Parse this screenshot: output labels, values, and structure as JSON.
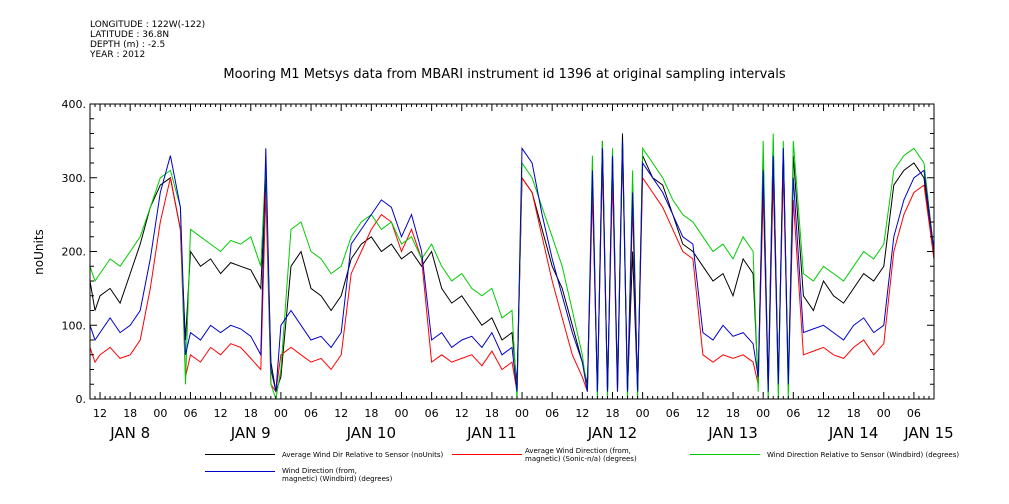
{
  "meta": {
    "longitude": "LONGITUDE : 122W(-122)",
    "latitude": "LATITUDE : 36.8N",
    "depth": "DEPTH (m) : -2.5",
    "year": "YEAR : 2012"
  },
  "chart_data": {
    "type": "line",
    "title": "Mooring M1 Metsys data from MBARI instrument id 1396 at original sampling intervals",
    "ylabel": "noUnits",
    "xlabel": "",
    "ylim": [
      0,
      400
    ],
    "xlim_hours": [
      -14,
      154
    ],
    "y_ticks": [
      0,
      100,
      200,
      300,
      400
    ],
    "y_tick_labels": [
      "0.",
      "100.",
      "200.",
      "300.",
      "400."
    ],
    "hour_ticks": [
      {
        "h": -12,
        "label": "12"
      },
      {
        "h": -6,
        "label": "18"
      },
      {
        "h": 0,
        "label": "00"
      },
      {
        "h": 6,
        "label": "06"
      },
      {
        "h": 12,
        "label": "12"
      },
      {
        "h": 18,
        "label": "18"
      },
      {
        "h": 24,
        "label": "00"
      },
      {
        "h": 30,
        "label": "06"
      },
      {
        "h": 36,
        "label": "12"
      },
      {
        "h": 42,
        "label": "18"
      },
      {
        "h": 48,
        "label": "00"
      },
      {
        "h": 54,
        "label": "06"
      },
      {
        "h": 60,
        "label": "12"
      },
      {
        "h": 66,
        "label": "18"
      },
      {
        "h": 72,
        "label": "00"
      },
      {
        "h": 78,
        "label": "06"
      },
      {
        "h": 84,
        "label": "12"
      },
      {
        "h": 90,
        "label": "18"
      },
      {
        "h": 96,
        "label": "00"
      },
      {
        "h": 102,
        "label": "06"
      },
      {
        "h": 108,
        "label": "12"
      },
      {
        "h": 114,
        "label": "18"
      },
      {
        "h": 120,
        "label": "00"
      },
      {
        "h": 126,
        "label": "06"
      },
      {
        "h": 132,
        "label": "12"
      },
      {
        "h": 138,
        "label": "18"
      },
      {
        "h": 144,
        "label": "00"
      },
      {
        "h": 150,
        "label": "06"
      },
      {
        "h": 156,
        "label": "12"
      },
      {
        "h": 162,
        "label": "18"
      },
      {
        "h": 168,
        "label": "00"
      }
    ],
    "day_labels": [
      {
        "h": -6,
        "label": "JAN  8"
      },
      {
        "h": 18,
        "label": "JAN  9"
      },
      {
        "h": 42,
        "label": "JAN 10"
      },
      {
        "h": 66,
        "label": "JAN 11"
      },
      {
        "h": 90,
        "label": "JAN 12"
      },
      {
        "h": 114,
        "label": "JAN 13"
      },
      {
        "h": 138,
        "label": "JAN 14"
      },
      {
        "h": 153,
        "label": "JAN 15"
      }
    ],
    "series": [
      {
        "name": "Average Wind Dir Relative to Sensor (noUnits)",
        "color": "#000000",
        "x": [
          -14,
          -13,
          -12,
          -10,
          -8,
          -6,
          -4,
          -2,
          0,
          2,
          4,
          5,
          6,
          8,
          10,
          12,
          14,
          16,
          18,
          20,
          21,
          22,
          23,
          24,
          26,
          28,
          30,
          32,
          34,
          36,
          38,
          40,
          42,
          44,
          46,
          48,
          50,
          52,
          54,
          56,
          58,
          60,
          62,
          64,
          66,
          68,
          70,
          71,
          72,
          74,
          76,
          78,
          80,
          82,
          84,
          85,
          86,
          87,
          88,
          89,
          90,
          91,
          92,
          93,
          94,
          95,
          96,
          98,
          100,
          102,
          104,
          106,
          108,
          110,
          112,
          114,
          116,
          118,
          119,
          120,
          121,
          122,
          123,
          124,
          125,
          126,
          128,
          130,
          132,
          134,
          136,
          138,
          140,
          142,
          144,
          146,
          148,
          150,
          152,
          154
        ],
        "y": [
          160,
          120,
          140,
          150,
          130,
          170,
          210,
          260,
          290,
          300,
          230,
          80,
          200,
          180,
          190,
          170,
          185,
          180,
          175,
          150,
          300,
          50,
          10,
          30,
          180,
          200,
          150,
          140,
          120,
          140,
          190,
          210,
          220,
          200,
          210,
          190,
          200,
          180,
          200,
          150,
          130,
          140,
          120,
          100,
          110,
          80,
          90,
          20,
          300,
          280,
          230,
          180,
          150,
          100,
          50,
          20,
          300,
          10,
          350,
          10,
          330,
          20,
          360,
          10,
          200,
          10,
          330,
          300,
          290,
          250,
          210,
          200,
          180,
          160,
          170,
          140,
          190,
          170,
          20,
          330,
          20,
          350,
          20,
          340,
          20,
          330,
          140,
          120,
          160,
          140,
          130,
          150,
          170,
          160,
          180,
          290,
          310,
          320,
          300,
          190
        ]
      },
      {
        "name": "Average Wind Direction (from,\n magnetic) (Sonic-n/a) (degrees)",
        "color": "#ff0000",
        "x": [
          -14,
          -13,
          -12,
          -10,
          -8,
          -6,
          -4,
          -2,
          0,
          2,
          4,
          5,
          6,
          8,
          10,
          12,
          14,
          16,
          18,
          20,
          21,
          22,
          23,
          24,
          26,
          28,
          30,
          32,
          34,
          36,
          38,
          40,
          42,
          44,
          46,
          48,
          50,
          52,
          54,
          56,
          58,
          60,
          62,
          64,
          66,
          68,
          70,
          71,
          72,
          74,
          76,
          78,
          80,
          82,
          84,
          85,
          86,
          87,
          88,
          89,
          90,
          91,
          92,
          93,
          94,
          95,
          96,
          98,
          100,
          102,
          104,
          106,
          108,
          110,
          112,
          114,
          116,
          118,
          119,
          120,
          121,
          122,
          123,
          124,
          125,
          126,
          128,
          130,
          132,
          134,
          136,
          138,
          140,
          142,
          144,
          146,
          148,
          150,
          152,
          154
        ],
        "y": [
          70,
          50,
          60,
          70,
          55,
          60,
          80,
          150,
          240,
          300,
          230,
          30,
          60,
          50,
          70,
          60,
          75,
          70,
          55,
          40,
          280,
          20,
          10,
          60,
          70,
          60,
          50,
          55,
          40,
          60,
          170,
          200,
          230,
          250,
          240,
          200,
          230,
          190,
          50,
          60,
          50,
          55,
          60,
          45,
          65,
          40,
          50,
          10,
          300,
          280,
          220,
          160,
          110,
          60,
          30,
          10,
          280,
          10,
          320,
          10,
          300,
          10,
          340,
          10,
          260,
          10,
          300,
          280,
          260,
          230,
          200,
          190,
          60,
          50,
          60,
          55,
          60,
          50,
          20,
          280,
          10,
          300,
          20,
          310,
          20,
          270,
          60,
          65,
          70,
          60,
          55,
          70,
          80,
          60,
          75,
          200,
          250,
          280,
          290,
          190
        ]
      },
      {
        "name": "Wind Direction Relative to Sensor (Windbird) (degrees)",
        "color": "#00cc00",
        "x": [
          -14,
          -13,
          -12,
          -10,
          -8,
          -6,
          -4,
          -2,
          0,
          2,
          4,
          5,
          6,
          8,
          10,
          12,
          14,
          16,
          18,
          20,
          21,
          22,
          23,
          24,
          26,
          28,
          30,
          32,
          34,
          36,
          38,
          40,
          42,
          44,
          46,
          48,
          50,
          52,
          54,
          56,
          58,
          60,
          62,
          64,
          66,
          68,
          70,
          71,
          72,
          74,
          76,
          78,
          80,
          82,
          84,
          85,
          86,
          87,
          88,
          89,
          90,
          91,
          92,
          93,
          94,
          95,
          96,
          98,
          100,
          102,
          104,
          106,
          108,
          110,
          112,
          114,
          116,
          118,
          119,
          120,
          121,
          122,
          123,
          124,
          125,
          126,
          128,
          130,
          132,
          134,
          136,
          138,
          140,
          142,
          144,
          146,
          148,
          150,
          152,
          154
        ],
        "y": [
          180,
          160,
          170,
          190,
          180,
          200,
          220,
          260,
          300,
          310,
          260,
          20,
          230,
          220,
          210,
          200,
          215,
          210,
          220,
          180,
          320,
          20,
          0,
          40,
          230,
          240,
          200,
          190,
          170,
          180,
          220,
          240,
          250,
          230,
          240,
          210,
          220,
          190,
          210,
          180,
          160,
          170,
          150,
          140,
          150,
          110,
          120,
          0,
          320,
          300,
          260,
          220,
          180,
          120,
          60,
          10,
          330,
          0,
          350,
          0,
          340,
          10,
          350,
          0,
          310,
          0,
          340,
          320,
          300,
          270,
          250,
          240,
          220,
          200,
          210,
          190,
          220,
          200,
          10,
          350,
          0,
          360,
          0,
          350,
          0,
          350,
          170,
          160,
          180,
          170,
          160,
          180,
          200,
          190,
          210,
          310,
          330,
          340,
          320,
          200
        ]
      },
      {
        "name": "Wind Direction (from,\n magnetic) (Windbird) (degrees)",
        "color": "#0000cc",
        "x": [
          -14,
          -13,
          -12,
          -10,
          -8,
          -6,
          -4,
          -2,
          0,
          2,
          4,
          5,
          6,
          8,
          10,
          12,
          14,
          16,
          18,
          20,
          21,
          22,
          23,
          24,
          26,
          28,
          30,
          32,
          34,
          36,
          38,
          40,
          42,
          44,
          46,
          48,
          50,
          52,
          54,
          56,
          58,
          60,
          62,
          64,
          66,
          68,
          70,
          71,
          72,
          74,
          76,
          78,
          80,
          82,
          84,
          85,
          86,
          87,
          88,
          89,
          90,
          91,
          92,
          93,
          94,
          95,
          96,
          98,
          100,
          102,
          104,
          106,
          108,
          110,
          112,
          114,
          116,
          118,
          119,
          120,
          121,
          122,
          123,
          124,
          125,
          126,
          128,
          130,
          132,
          134,
          136,
          138,
          140,
          142,
          144,
          146,
          148,
          150,
          152,
          154
        ],
        "y": [
          100,
          80,
          90,
          110,
          90,
          100,
          120,
          190,
          280,
          330,
          260,
          60,
          90,
          80,
          100,
          90,
          100,
          95,
          85,
          60,
          340,
          40,
          10,
          100,
          120,
          100,
          80,
          85,
          70,
          90,
          210,
          230,
          250,
          270,
          260,
          220,
          250,
          200,
          80,
          90,
          70,
          80,
          85,
          70,
          90,
          60,
          70,
          10,
          340,
          320,
          250,
          190,
          140,
          90,
          50,
          10,
          310,
          10,
          340,
          10,
          330,
          10,
          350,
          10,
          280,
          10,
          320,
          300,
          280,
          250,
          220,
          210,
          90,
          80,
          100,
          85,
          90,
          75,
          30,
          310,
          10,
          330,
          20,
          340,
          20,
          300,
          90,
          95,
          100,
          90,
          80,
          100,
          110,
          90,
          100,
          220,
          270,
          300,
          310,
          200
        ]
      }
    ]
  }
}
